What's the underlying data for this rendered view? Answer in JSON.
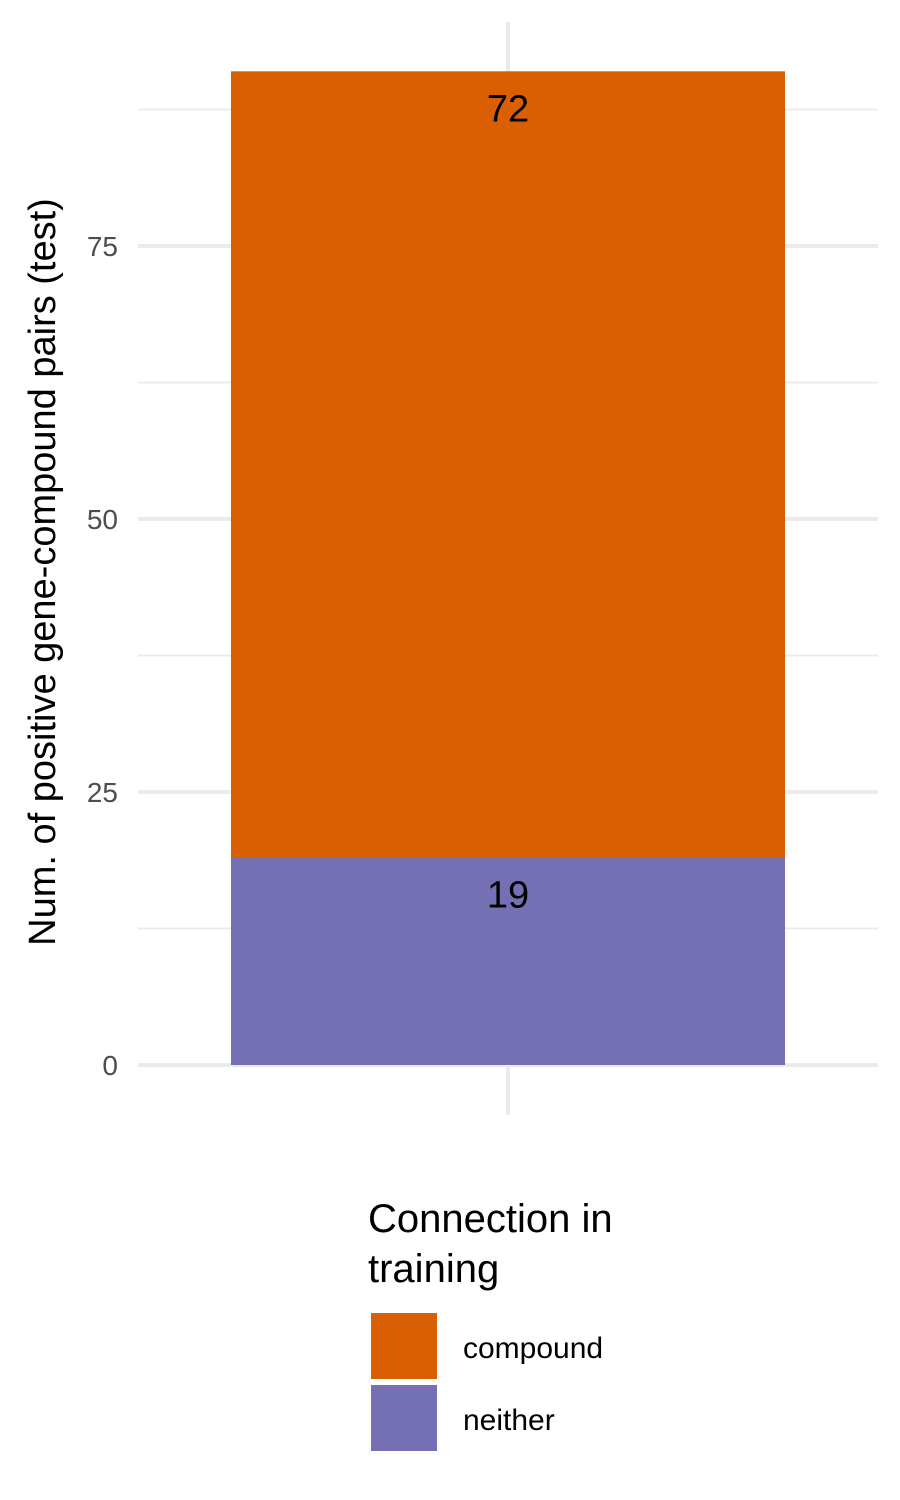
{
  "chart_data": {
    "type": "bar",
    "stacked": true,
    "categories": [
      ""
    ],
    "series": [
      {
        "name": "neither",
        "values": [
          19
        ],
        "color": "#7570b3"
      },
      {
        "name": "compound",
        "values": [
          72
        ],
        "color": "#d95f02"
      }
    ],
    "data_labels": [
      "19",
      "72"
    ],
    "xlabel": "",
    "ylabel": "Num. of positive gene-compound pairs (test)",
    "ylim": [
      0,
      91
    ],
    "yticks": [
      0,
      25,
      50,
      75
    ],
    "ytick_labels": [
      "0",
      "25",
      "50",
      "75"
    ],
    "grid": true,
    "legend": {
      "title_lines": [
        "Connection in",
        "training"
      ],
      "placement": "bottom",
      "entries": [
        "compound",
        "neither"
      ]
    }
  }
}
